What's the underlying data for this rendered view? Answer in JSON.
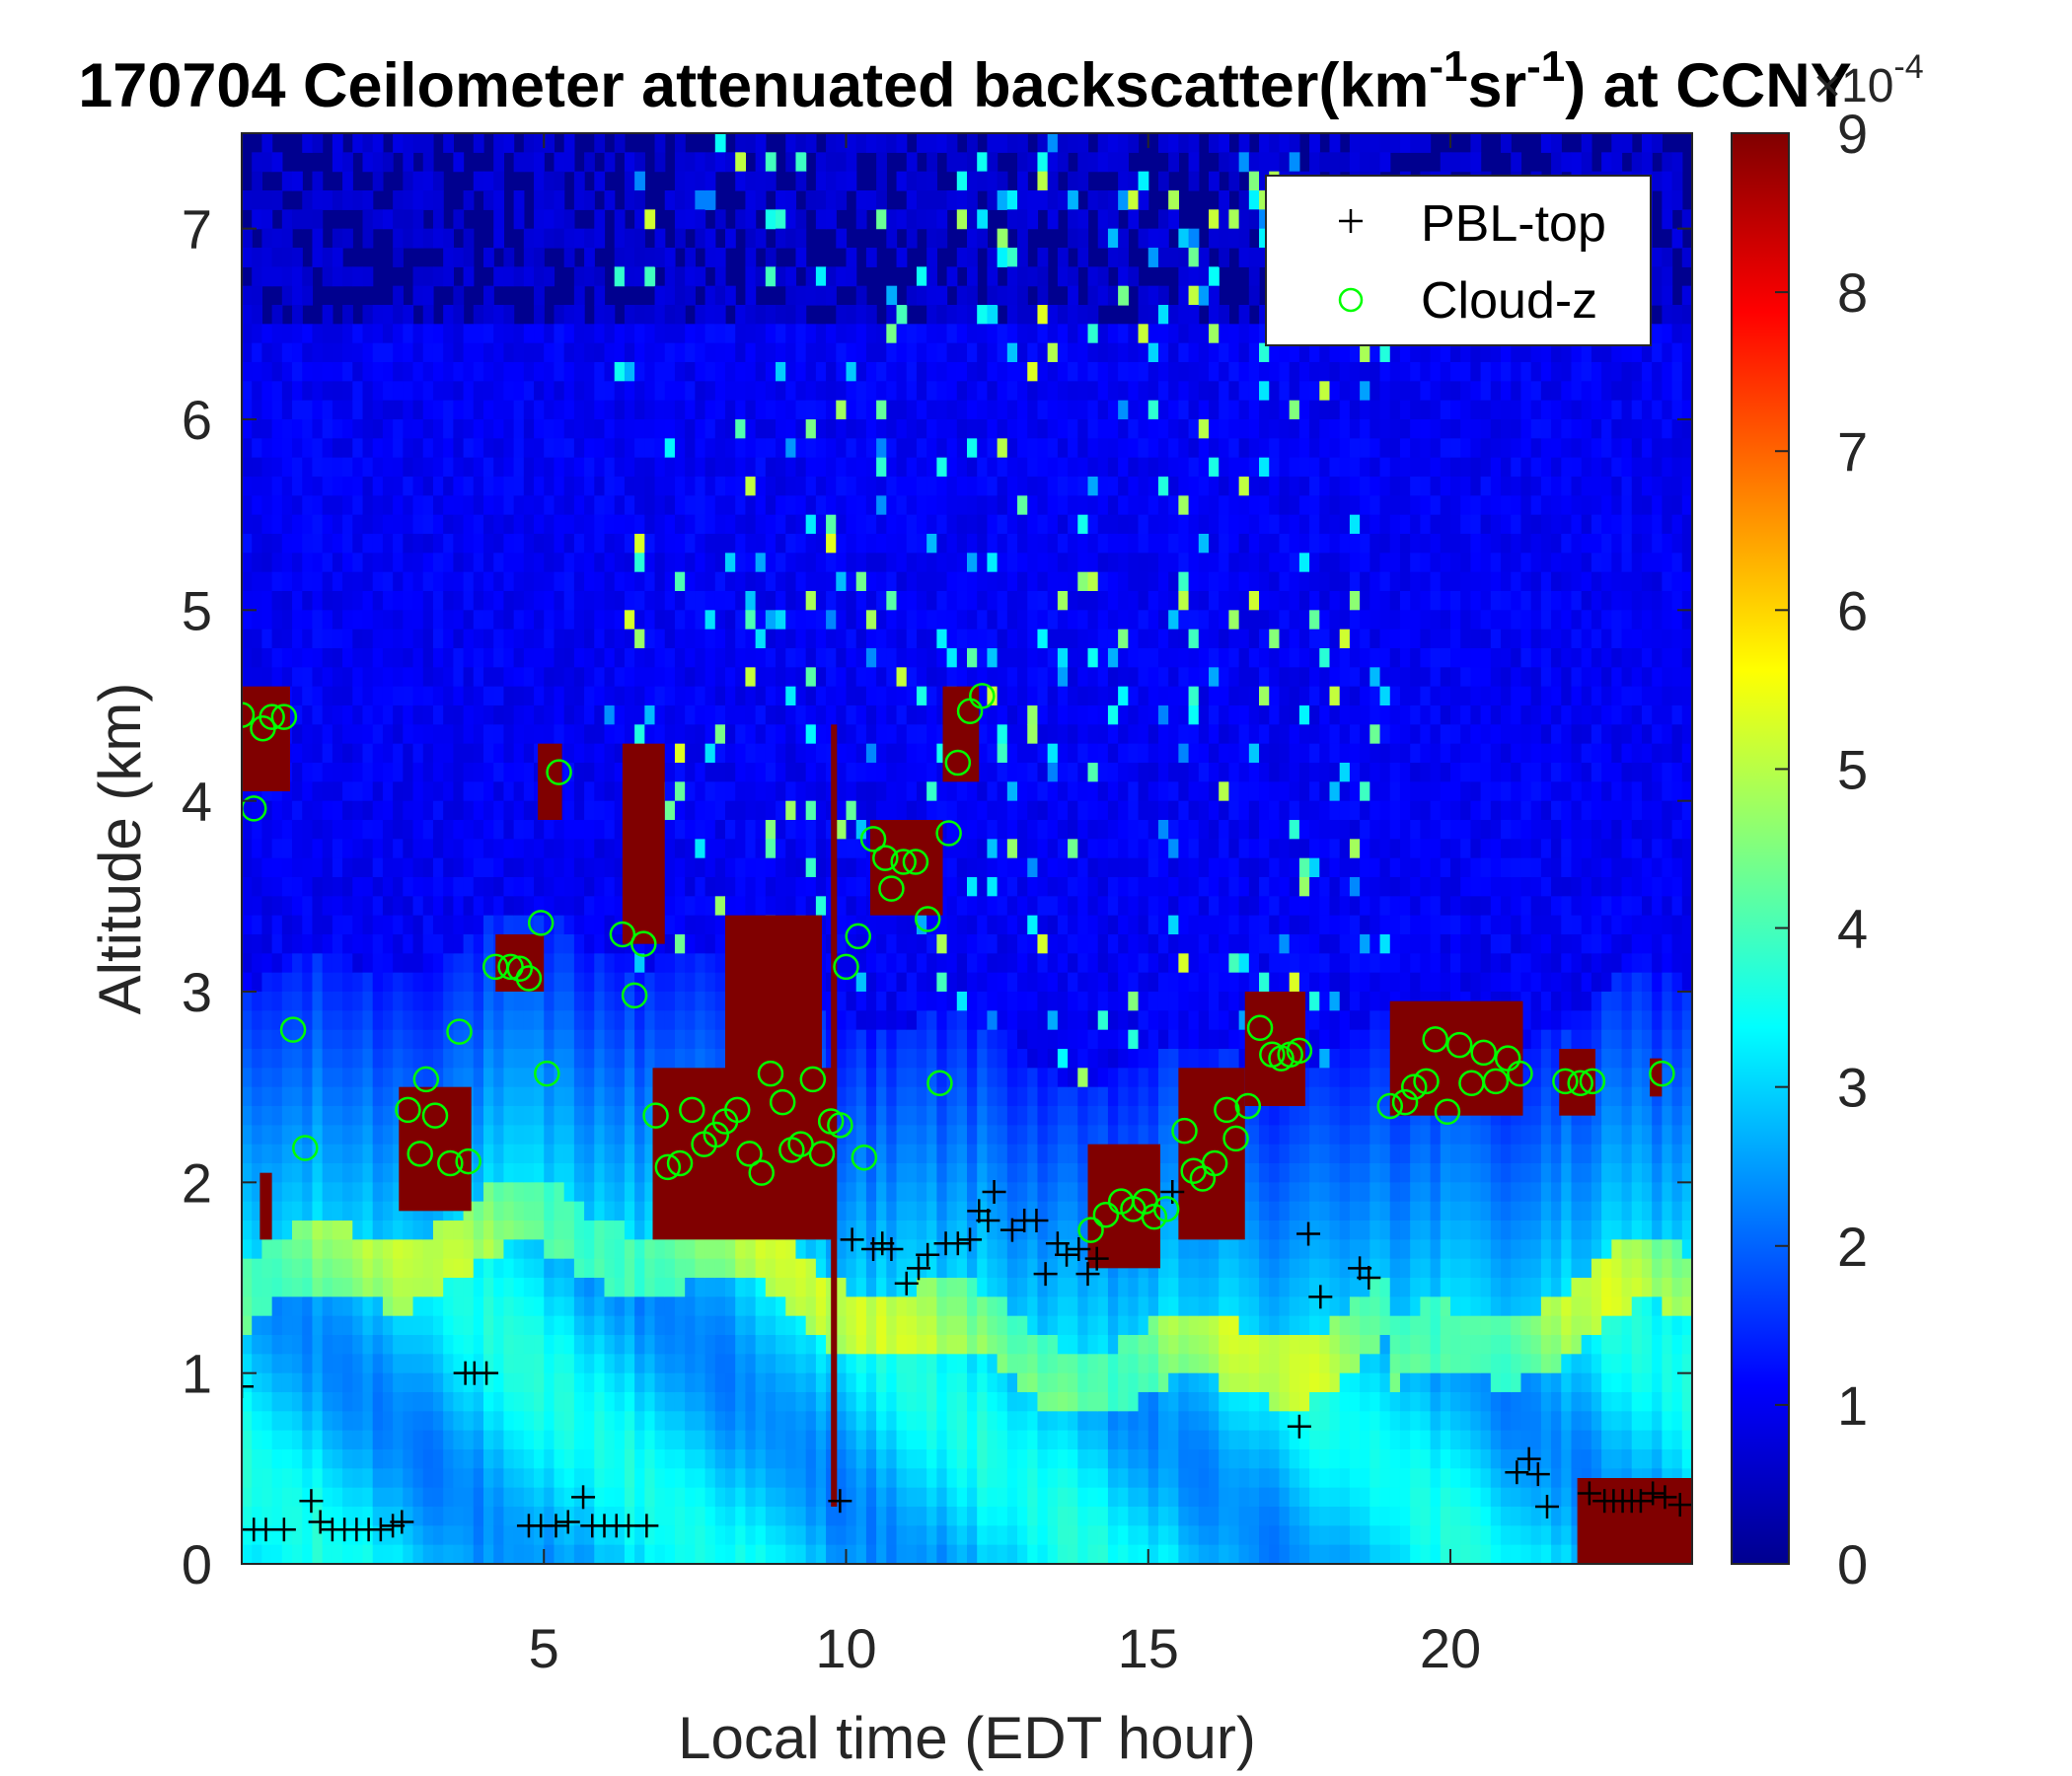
{
  "chart_data": {
    "type": "heatmap",
    "title": {
      "prefix": "170704 Ceilometer attenuated backscatter(km",
      "sup1": "-1",
      "mid": "sr",
      "sup2": "-1",
      "suffix": ") at CCNY"
    },
    "xlabel": "Local time (EDT hour)",
    "ylabel": "Altitude (km)",
    "xlim": [
      0,
      24
    ],
    "ylim": [
      0,
      7.5
    ],
    "xticks": [
      5,
      10,
      15,
      20
    ],
    "yticks": [
      0,
      1,
      2,
      3,
      4,
      5,
      6,
      7
    ],
    "colorbar": {
      "colormap": "jet",
      "range": [
        0,
        9
      ],
      "ticks": [
        0,
        1,
        2,
        3,
        4,
        5,
        6,
        7,
        8,
        9
      ],
      "multiplier_base": "×10",
      "multiplier_exp": "-4"
    },
    "legend": {
      "location": "top-right",
      "entries": [
        {
          "label": "PBL-top",
          "marker": "+",
          "color": "#000000"
        },
        {
          "label": "Cloud-z",
          "marker": "o",
          "color": "#00ff00"
        }
      ]
    },
    "grid": false,
    "series": [
      {
        "name": "PBL-top",
        "marker": "+",
        "color": "#000000",
        "points": [
          [
            0.0,
            0.93
          ],
          [
            0.2,
            0.18
          ],
          [
            0.4,
            0.18
          ],
          [
            0.7,
            0.18
          ],
          [
            1.15,
            0.33
          ],
          [
            1.3,
            0.22
          ],
          [
            1.5,
            0.18
          ],
          [
            1.7,
            0.18
          ],
          [
            1.9,
            0.18
          ],
          [
            2.1,
            0.18
          ],
          [
            2.3,
            0.18
          ],
          [
            2.5,
            0.2
          ],
          [
            2.65,
            0.22
          ],
          [
            3.7,
            1.0
          ],
          [
            3.85,
            1.0
          ],
          [
            4.05,
            1.0
          ],
          [
            4.75,
            0.2
          ],
          [
            4.95,
            0.2
          ],
          [
            5.2,
            0.2
          ],
          [
            5.4,
            0.22
          ],
          [
            5.65,
            0.35
          ],
          [
            5.8,
            0.2
          ],
          [
            6.0,
            0.2
          ],
          [
            6.2,
            0.2
          ],
          [
            6.4,
            0.2
          ],
          [
            6.7,
            0.2
          ],
          [
            9.9,
            0.33
          ],
          [
            10.1,
            1.7
          ],
          [
            10.45,
            1.65
          ],
          [
            10.6,
            1.68
          ],
          [
            10.75,
            1.65
          ],
          [
            11.0,
            1.47
          ],
          [
            11.2,
            1.55
          ],
          [
            11.35,
            1.62
          ],
          [
            11.65,
            1.68
          ],
          [
            11.85,
            1.68
          ],
          [
            12.05,
            1.7
          ],
          [
            12.2,
            1.85
          ],
          [
            12.35,
            1.8
          ],
          [
            12.45,
            1.95
          ],
          [
            12.75,
            1.75
          ],
          [
            12.95,
            1.8
          ],
          [
            13.15,
            1.8
          ],
          [
            13.3,
            1.52
          ],
          [
            13.5,
            1.68
          ],
          [
            13.65,
            1.62
          ],
          [
            13.85,
            1.65
          ],
          [
            14.0,
            1.52
          ],
          [
            14.15,
            1.6
          ],
          [
            15.4,
            1.95
          ],
          [
            17.5,
            0.72
          ],
          [
            17.65,
            1.73
          ],
          [
            17.85,
            1.4
          ],
          [
            18.5,
            1.55
          ],
          [
            18.65,
            1.5
          ],
          [
            21.1,
            0.48
          ],
          [
            21.3,
            0.55
          ],
          [
            21.45,
            0.47
          ],
          [
            21.6,
            0.3
          ],
          [
            22.3,
            0.37
          ],
          [
            22.55,
            0.33
          ],
          [
            22.7,
            0.33
          ],
          [
            22.85,
            0.33
          ],
          [
            23.0,
            0.33
          ],
          [
            23.15,
            0.33
          ],
          [
            23.35,
            0.37
          ],
          [
            23.55,
            0.35
          ],
          [
            23.8,
            0.31
          ]
        ]
      },
      {
        "name": "Cloud-z",
        "marker": "o",
        "color": "#00ff00",
        "points": [
          [
            0.0,
            4.45
          ],
          [
            0.2,
            3.96
          ],
          [
            0.35,
            4.38
          ],
          [
            0.5,
            4.44
          ],
          [
            0.7,
            4.44
          ],
          [
            0.85,
            2.8
          ],
          [
            1.05,
            2.18
          ],
          [
            2.75,
            2.38
          ],
          [
            2.95,
            2.15
          ],
          [
            3.05,
            2.54
          ],
          [
            3.2,
            2.35
          ],
          [
            3.45,
            2.1
          ],
          [
            3.6,
            2.79
          ],
          [
            3.75,
            2.11
          ],
          [
            4.2,
            3.13
          ],
          [
            4.45,
            3.13
          ],
          [
            4.6,
            3.12
          ],
          [
            4.75,
            3.07
          ],
          [
            4.95,
            3.36
          ],
          [
            5.05,
            2.57
          ],
          [
            5.25,
            4.15
          ],
          [
            6.3,
            3.3
          ],
          [
            6.5,
            2.98
          ],
          [
            6.65,
            3.25
          ],
          [
            6.85,
            2.35
          ],
          [
            7.05,
            2.08
          ],
          [
            7.25,
            2.1
          ],
          [
            7.45,
            2.38
          ],
          [
            7.65,
            2.2
          ],
          [
            7.85,
            2.25
          ],
          [
            8.0,
            2.32
          ],
          [
            8.2,
            2.38
          ],
          [
            8.4,
            2.15
          ],
          [
            8.6,
            2.05
          ],
          [
            8.75,
            2.57
          ],
          [
            8.95,
            2.42
          ],
          [
            9.1,
            2.17
          ],
          [
            9.25,
            2.2
          ],
          [
            9.45,
            2.54
          ],
          [
            9.6,
            2.15
          ],
          [
            9.75,
            2.32
          ],
          [
            9.9,
            2.3
          ],
          [
            10.0,
            3.13
          ],
          [
            10.2,
            3.29
          ],
          [
            10.3,
            2.13
          ],
          [
            10.45,
            3.8
          ],
          [
            10.65,
            3.7
          ],
          [
            10.75,
            3.54
          ],
          [
            10.95,
            3.68
          ],
          [
            11.15,
            3.68
          ],
          [
            11.35,
            3.38
          ],
          [
            11.55,
            2.52
          ],
          [
            11.7,
            3.83
          ],
          [
            11.85,
            4.2
          ],
          [
            12.05,
            4.47
          ],
          [
            12.25,
            4.55
          ],
          [
            14.05,
            1.75
          ],
          [
            14.3,
            1.83
          ],
          [
            14.55,
            1.9
          ],
          [
            14.75,
            1.86
          ],
          [
            14.95,
            1.9
          ],
          [
            15.1,
            1.82
          ],
          [
            15.3,
            1.86
          ],
          [
            15.6,
            2.27
          ],
          [
            15.75,
            2.06
          ],
          [
            15.9,
            2.02
          ],
          [
            16.1,
            2.1
          ],
          [
            16.3,
            2.38
          ],
          [
            16.45,
            2.23
          ],
          [
            16.65,
            2.4
          ],
          [
            16.85,
            2.81
          ],
          [
            17.05,
            2.67
          ],
          [
            17.2,
            2.65
          ],
          [
            17.35,
            2.67
          ],
          [
            17.5,
            2.69
          ],
          [
            19.0,
            2.4
          ],
          [
            19.25,
            2.42
          ],
          [
            19.4,
            2.5
          ],
          [
            19.6,
            2.53
          ],
          [
            19.75,
            2.75
          ],
          [
            19.95,
            2.37
          ],
          [
            20.15,
            2.72
          ],
          [
            20.35,
            2.52
          ],
          [
            20.55,
            2.68
          ],
          [
            20.75,
            2.53
          ],
          [
            20.95,
            2.65
          ],
          [
            21.15,
            2.57
          ],
          [
            21.9,
            2.53
          ],
          [
            22.15,
            2.52
          ],
          [
            22.35,
            2.53
          ],
          [
            23.5,
            2.57
          ]
        ]
      }
    ]
  }
}
